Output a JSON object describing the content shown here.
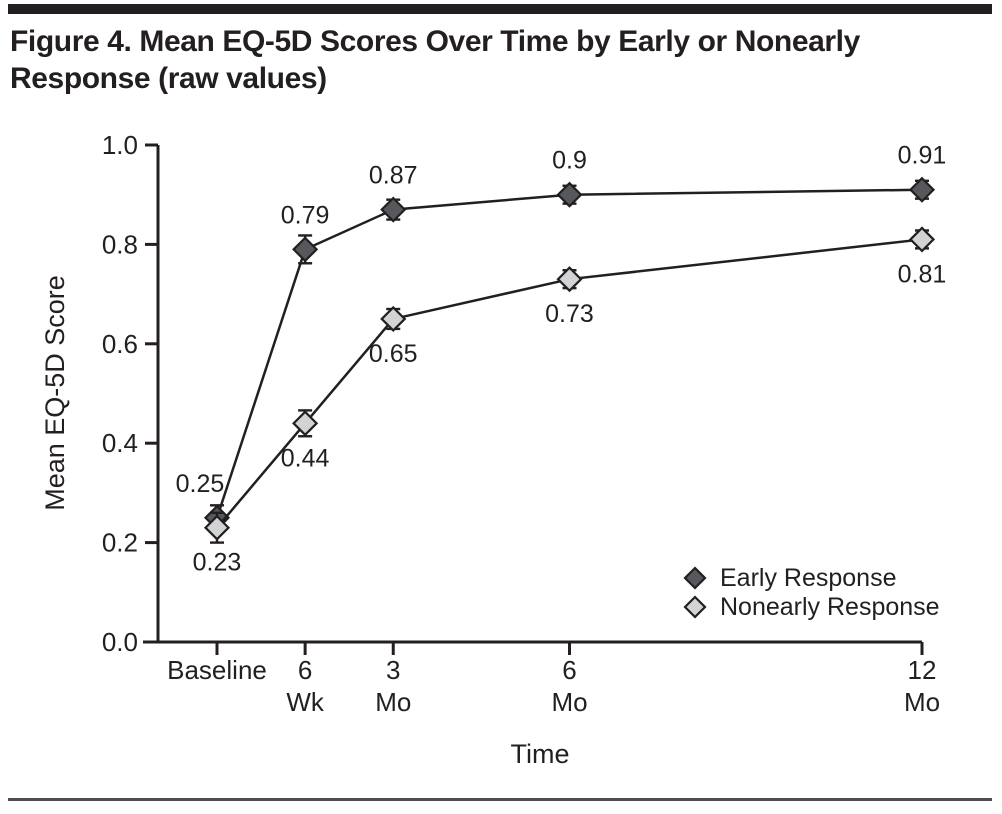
{
  "figure": {
    "title_line1": "Figure 4. Mean EQ-5D Scores Over Time by Early or Nonearly",
    "title_line2": "Response (raw values)"
  },
  "chart_data": {
    "type": "line",
    "title": "Mean EQ-5D Scores Over Time by Early or Nonearly Response (raw values)",
    "xlabel": "Time",
    "ylabel": "Mean EQ-5D Score",
    "ylim": [
      0.0,
      1.0
    ],
    "grid": false,
    "y_ticks": [
      {
        "value": 0.0,
        "label": "0.0"
      },
      {
        "value": 0.2,
        "label": "0.2"
      },
      {
        "value": 0.4,
        "label": "0.4"
      },
      {
        "value": 0.6,
        "label": "0.6"
      },
      {
        "value": 0.8,
        "label": "0.8"
      },
      {
        "value": 1.0,
        "label": "1.0"
      }
    ],
    "x_ticks": [
      {
        "month": 0,
        "line1": "Baseline",
        "line2": ""
      },
      {
        "month": 1.5,
        "line1": "6",
        "line2": "Wk"
      },
      {
        "month": 3,
        "line1": "3",
        "line2": "Mo"
      },
      {
        "month": 6,
        "line1": "6",
        "line2": "Mo"
      },
      {
        "month": 12,
        "line1": "12",
        "line2": "Mo"
      }
    ],
    "legend": {
      "position": "inside-lower-right",
      "entries": [
        "Early Response",
        "Nonearly Response"
      ]
    },
    "series": [
      {
        "name": "Early Response",
        "marker": "diamond",
        "fill": "#57585b",
        "x_months": [
          0,
          1.5,
          3,
          6,
          12
        ],
        "values": [
          0.25,
          0.79,
          0.87,
          0.9,
          0.91
        ],
        "value_labels": [
          "0.25",
          "0.79",
          "0.87",
          "0.9",
          "0.91"
        ],
        "errors": [
          0.025,
          0.028,
          0.02,
          0.018,
          0.018
        ],
        "label_side": "above",
        "label_dx": [
          -17,
          0,
          0,
          0,
          0
        ]
      },
      {
        "name": "Nonearly Response",
        "marker": "diamond",
        "fill": "#d2d3d5",
        "x_months": [
          0,
          1.5,
          3,
          6,
          12
        ],
        "values": [
          0.23,
          0.44,
          0.65,
          0.73,
          0.81
        ],
        "value_labels": [
          "0.23",
          "0.44",
          "0.65",
          "0.73",
          "0.81"
        ],
        "errors": [
          0.03,
          0.026,
          0.02,
          0.018,
          0.018
        ],
        "label_side": "below",
        "label_dx": [
          0,
          0,
          0,
          0,
          0
        ]
      }
    ]
  },
  "colors": {
    "ink": "#231f20",
    "early_fill": "#57585b",
    "nonearly_fill": "#d2d3d5",
    "background": "#ffffff"
  }
}
